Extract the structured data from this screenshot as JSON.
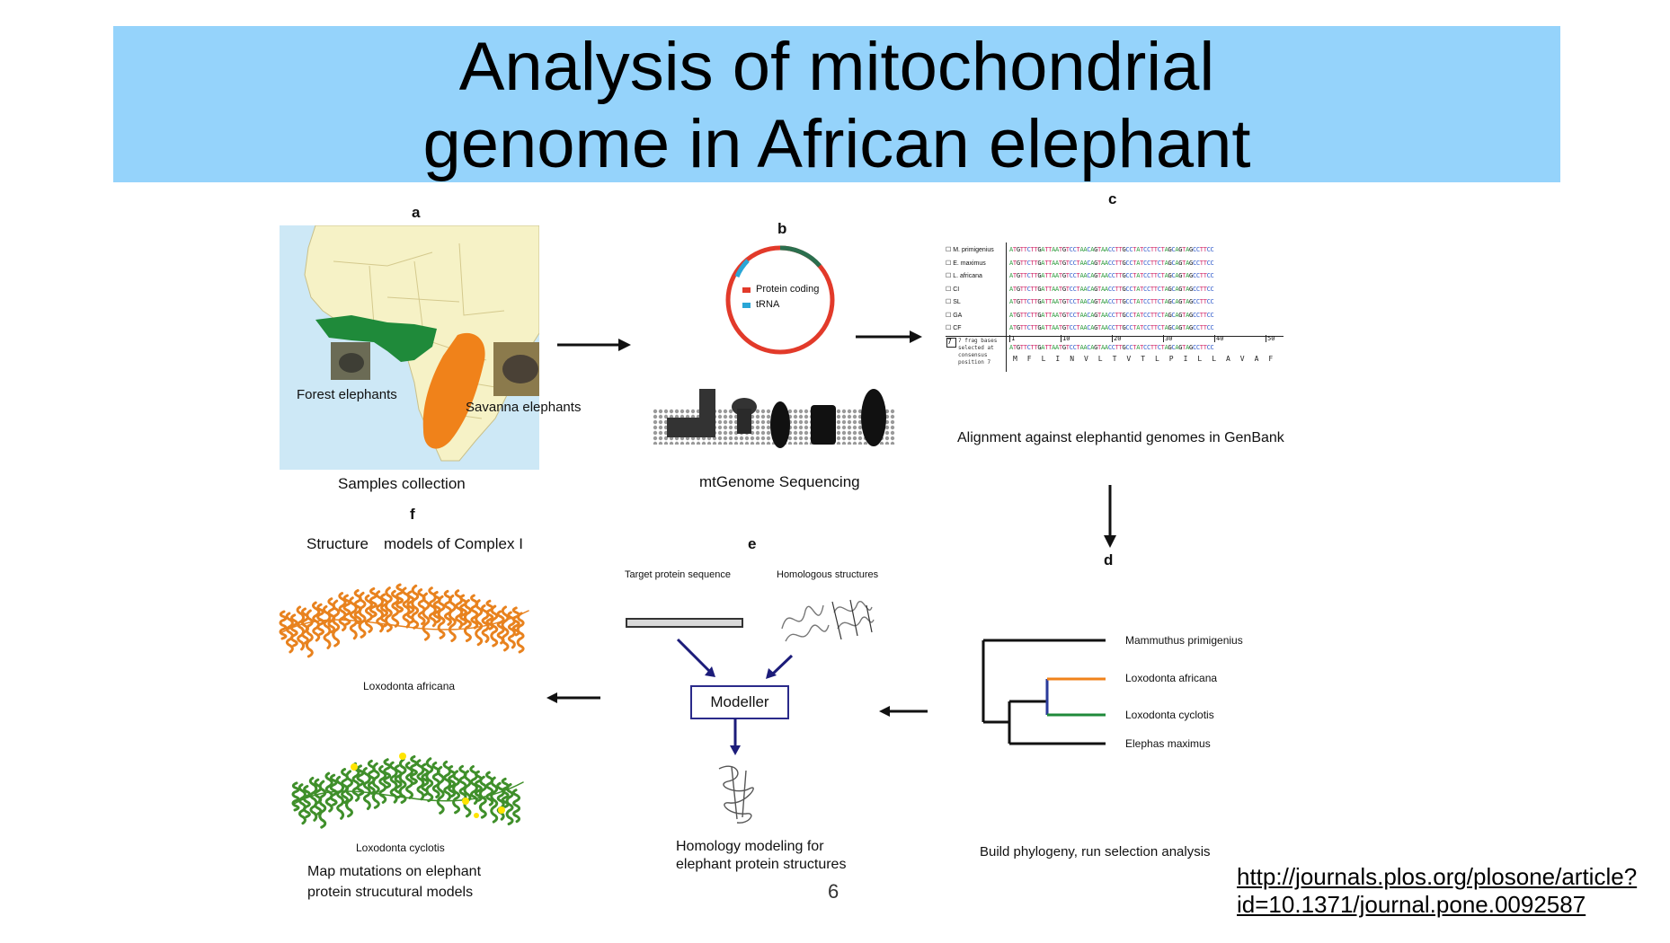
{
  "slide": {
    "title_line1": "Analysis of mitochondrial",
    "title_line2": "genome in African elephant",
    "page_number": "6",
    "reference_link_line1": "http://journals.plos.org/plosone/article?",
    "reference_link_line2": "id=10.1371/journal.pone.0092587"
  },
  "panels": {
    "a": {
      "letter": "a",
      "forest_label": "Forest elephants",
      "savanna_label": "Savanna elephants",
      "caption": "Samples collection",
      "forest_color": "#1f8a3a",
      "savanna_color": "#f0821a"
    },
    "b": {
      "letter": "b",
      "legend_protein": "Protein coding",
      "legend_trna": "tRNA",
      "caption": "mtGenome Sequencing",
      "protein_color": "#e23a2a",
      "trna_color": "#2aa6d6"
    },
    "c": {
      "letter": "c",
      "species": [
        "M. primigenius",
        "E. maximus",
        "L. africana",
        "CI",
        "SL",
        "GA",
        "CF"
      ],
      "sequence": "ATGTTCTTGATTAATGTCCTAACAGTAACCTTGCCTATCCTTCTAGCAGTAGCCTTCC",
      "consensus_label": "7 frag bases selected at consensus position 7",
      "consensus_row_number": "7",
      "ruler_ticks": [
        "1",
        "10",
        "20",
        "30",
        "40",
        "50"
      ],
      "amino_acids": [
        "M",
        "F",
        "L",
        "I",
        "N",
        "V",
        "L",
        "T",
        "V",
        "T",
        "L",
        "P",
        "I",
        "L",
        "L",
        "A",
        "V",
        "A",
        "F"
      ],
      "caption": "Alignment against elephantid genomes in GenBank"
    },
    "d": {
      "letter": "d",
      "taxa": [
        "Mammuthus primigenius",
        "Loxodonta africana",
        "Loxodonta cyclotis",
        "Elephas maximus"
      ],
      "africana_color": "#f0821a",
      "cyclotis_color": "#1f8a3a",
      "caption": "Build phylogeny, run selection analysis"
    },
    "e": {
      "letter": "e",
      "target_label": "Target protein sequence",
      "homologous_label": "Homologous structures",
      "modeller_label": "Modeller",
      "caption_line1": "Homology modeling for",
      "caption_line2": "elephant protein structures"
    },
    "f": {
      "letter": "f",
      "heading": "Structure models of Complex I",
      "species_top": "Loxodonta africana",
      "species_bottom": "Loxodonta cyclotis",
      "caption_line1": "Map mutations on elephant",
      "caption_line2": "protein strucutural models",
      "top_color": "#e8821e",
      "bottom_color": "#3f8f2a"
    }
  }
}
